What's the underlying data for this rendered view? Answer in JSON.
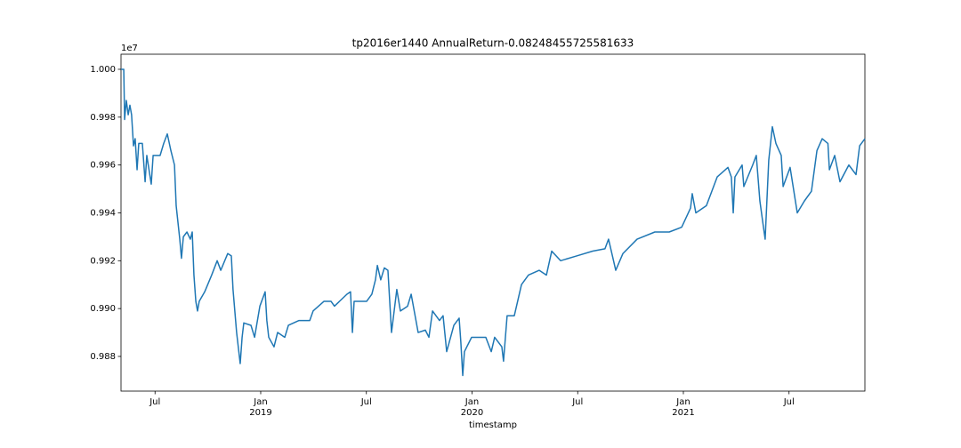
{
  "chart_data": {
    "type": "line",
    "title": "tp2016er1440 AnnualReturn-0.08248455725581633",
    "x_label": "timestamp",
    "y_offset_label": "1e7",
    "color": "#1f77b4",
    "xlim": [
      2018.339,
      2021.859
    ],
    "xticks": [
      {
        "value": 2018.5,
        "label": "Jul"
      },
      {
        "value": 2019,
        "label": "Jan\n2019"
      },
      {
        "value": 2019.5,
        "label": "Jul"
      },
      {
        "value": 2020,
        "label": "Jan\n2020"
      },
      {
        "value": 2020.5,
        "label": "Jul"
      },
      {
        "value": 2021,
        "label": "Jan\n2021"
      },
      {
        "value": 2021.5,
        "label": "Jul"
      }
    ],
    "ylim": [
      0.98655,
      1.00063
    ],
    "yticks": [
      0.988,
      {
        "value": 0.99,
        "label": "0.990"
      },
      0.992,
      0.994,
      0.996,
      0.998,
      {
        "value": 1,
        "label": "1.000"
      }
    ],
    "x": [
      2018.339,
      2018.352,
      2018.356,
      2018.364,
      2018.373,
      2018.381,
      2018.389,
      2018.398,
      2018.406,
      2018.415,
      2018.423,
      2018.44,
      2018.453,
      2018.461,
      2018.482,
      2018.491,
      2018.524,
      2018.541,
      2018.558,
      2018.575,
      2018.592,
      2018.6,
      2018.617,
      2018.625,
      2018.634,
      2018.651,
      2018.667,
      2018.676,
      2018.684,
      2018.693,
      2018.701,
      2018.709,
      2018.735,
      2018.768,
      2018.794,
      2018.811,
      2018.844,
      2018.861,
      2018.869,
      2018.886,
      2018.903,
      2018.912,
      2018.92,
      2018.954,
      2018.971,
      2018.996,
      2019.021,
      2019.029,
      2019.038,
      2019.063,
      2019.08,
      2019.114,
      2019.131,
      2019.181,
      2019.232,
      2019.248,
      2019.299,
      2019.333,
      2019.349,
      2019.408,
      2019.425,
      2019.434,
      2019.442,
      2019.501,
      2019.526,
      2019.543,
      2019.552,
      2019.568,
      2019.585,
      2019.602,
      2019.619,
      2019.644,
      2019.661,
      2019.695,
      2019.712,
      2019.745,
      2019.779,
      2019.796,
      2019.813,
      2019.846,
      2019.863,
      2019.88,
      2019.914,
      2019.939,
      2019.947,
      2019.956,
      2019.964,
      2019.998,
      2020.065,
      2020.091,
      2020.107,
      2020.141,
      2020.149,
      2020.166,
      2020.2,
      2020.234,
      2020.267,
      2020.318,
      2020.352,
      2020.377,
      2020.419,
      2020.495,
      2020.571,
      2020.629,
      2020.646,
      2020.68,
      2020.714,
      2020.781,
      2020.865,
      2020.933,
      2020.992,
      2021.034,
      2021.042,
      2021.059,
      2021.109,
      2021.16,
      2021.211,
      2021.227,
      2021.236,
      2021.244,
      2021.278,
      2021.286,
      2021.328,
      2021.345,
      2021.362,
      2021.379,
      2021.387,
      2021.404,
      2021.421,
      2021.438,
      2021.463,
      2021.472,
      2021.505,
      2021.539,
      2021.573,
      2021.606,
      2021.632,
      2021.657,
      2021.684,
      2021.691,
      2021.716,
      2021.741,
      2021.783,
      2021.817,
      2021.834,
      2021.859
    ],
    "values": [
      1.0,
      1.0,
      0.9979,
      0.9987,
      0.9981,
      0.9985,
      0.9981,
      0.9968,
      0.9971,
      0.9958,
      0.9969,
      0.9969,
      0.9953,
      0.9964,
      0.9952,
      0.9964,
      0.9964,
      0.9969,
      0.9973,
      0.9966,
      0.996,
      0.9943,
      0.9929,
      0.9921,
      0.993,
      0.9932,
      0.9929,
      0.9932,
      0.9914,
      0.9903,
      0.9899,
      0.9903,
      0.9907,
      0.9914,
      0.992,
      0.9916,
      0.9923,
      0.9922,
      0.9908,
      0.989,
      0.9877,
      0.9888,
      0.9894,
      0.9893,
      0.9888,
      0.9901,
      0.9907,
      0.9895,
      0.9888,
      0.9884,
      0.989,
      0.9888,
      0.9893,
      0.9895,
      0.9895,
      0.9899,
      0.9903,
      0.9903,
      0.9901,
      0.9906,
      0.9907,
      0.989,
      0.9903,
      0.9903,
      0.9906,
      0.9912,
      0.9918,
      0.9912,
      0.9917,
      0.9916,
      0.989,
      0.9908,
      0.9899,
      0.9901,
      0.9906,
      0.989,
      0.9891,
      0.9888,
      0.9899,
      0.9895,
      0.9897,
      0.9882,
      0.9893,
      0.9896,
      0.9886,
      0.9872,
      0.9882,
      0.9888,
      0.9888,
      0.9882,
      0.9888,
      0.9884,
      0.9878,
      0.9897,
      0.9897,
      0.991,
      0.9914,
      0.9916,
      0.9914,
      0.9924,
      0.992,
      0.9922,
      0.9924,
      0.9925,
      0.9929,
      0.9916,
      0.9923,
      0.9929,
      0.9932,
      0.9932,
      0.9934,
      0.9942,
      0.9948,
      0.994,
      0.9943,
      0.9955,
      0.9959,
      0.9955,
      0.994,
      0.9955,
      0.996,
      0.9951,
      0.996,
      0.9964,
      0.9945,
      0.9934,
      0.9929,
      0.9962,
      0.9976,
      0.9969,
      0.9964,
      0.9951,
      0.9959,
      0.994,
      0.9945,
      0.9949,
      0.9966,
      0.9971,
      0.9969,
      0.9958,
      0.9964,
      0.9953,
      0.996,
      0.9956,
      0.9968,
      0.9971
    ]
  }
}
